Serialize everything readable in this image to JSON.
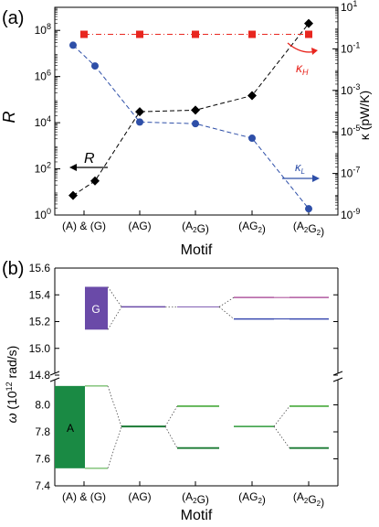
{
  "chart_data": [
    {
      "panel_label": "(a)",
      "type": "line",
      "categories": [
        "(A) & (G)",
        "(AG)",
        "(A2G)",
        "(AG2)",
        "(A2G2)"
      ],
      "xlabel": "Motif",
      "ylabel_left": "R",
      "ylabel_right": "κ (pW/K)",
      "left_axis": {
        "scale": "log",
        "range": [
          1,
          1000000000.0
        ],
        "ticks": [
          "10^0",
          "10^2",
          "10^4",
          "10^6",
          "10^8"
        ]
      },
      "right_axis": {
        "scale": "log",
        "range": [
          1e-09,
          10
        ],
        "ticks": [
          "10^-9",
          "10^-7",
          "10^-5",
          "10^-3",
          "10^-1",
          "10^1"
        ]
      },
      "series": [
        {
          "name": "R",
          "axis": "left",
          "color": "#000000",
          "marker": "diamond",
          "line": "dashed",
          "x": [
            "(A)",
            "(G)",
            "(AG)",
            "(A2G)",
            "(AG2)",
            "(A2G2)"
          ],
          "values": [
            7,
            30,
            30000,
            35000,
            150000,
            200000000
          ]
        },
        {
          "name": "κH",
          "axis": "right",
          "color": "#e8261f",
          "marker": "square",
          "line": "dash-dot",
          "x": [
            "(A) & (G)",
            "(AG)",
            "(A2G)",
            "(AG2)",
            "(A2G2)"
          ],
          "values": [
            0.5,
            0.5,
            0.5,
            0.5,
            0.5
          ]
        },
        {
          "name": "κL",
          "axis": "right",
          "color": "#2e4fa8",
          "marker": "circle",
          "line": "dashed",
          "x": [
            "(A)",
            "(G)",
            "(AG)",
            "(A2G)",
            "(AG2)",
            "(A2G2)"
          ],
          "values": [
            0.15,
            0.015,
            3e-05,
            2.5e-05,
            5e-06,
            2e-09
          ]
        }
      ],
      "annotations": [
        "R",
        "κH",
        "κL"
      ]
    },
    {
      "panel_label": "(b)",
      "type": "band-diagram",
      "categories": [
        "(A) & (G)",
        "(AG)",
        "(A2G)",
        "(AG2)",
        "(A2G2)"
      ],
      "xlabel": "Motif",
      "ylabel": "ω (10^12 rad/s)",
      "y_ticks_upper": [
        "14.8",
        "15.0",
        "15.2",
        "15.4",
        "15.6"
      ],
      "y_ticks_lower": [
        "7.4",
        "7.6",
        "7.8",
        "8.0"
      ],
      "block_labels": [
        "G",
        "A"
      ],
      "levels": {
        "A_block": [
          7.53,
          8.14
        ],
        "G_block": [
          15.14,
          15.46
        ],
        "AG": {
          "upper": [
            15.31
          ],
          "lower": [
            7.84
          ]
        },
        "A2G": {
          "upper": [
            15.31
          ],
          "lower": [
            7.68,
            7.99
          ]
        },
        "AG2": {
          "upper": [
            15.22,
            15.38
          ],
          "lower": [
            7.84
          ]
        },
        "A2G2": {
          "upper": [
            15.22,
            15.38
          ],
          "lower": [
            7.68,
            7.99
          ]
        }
      },
      "colors": {
        "A": "#1a8a44",
        "G": "#6a4aa8",
        "upper_mix": "#b05aa0",
        "lower_mix": "#46a83a"
      }
    }
  ]
}
